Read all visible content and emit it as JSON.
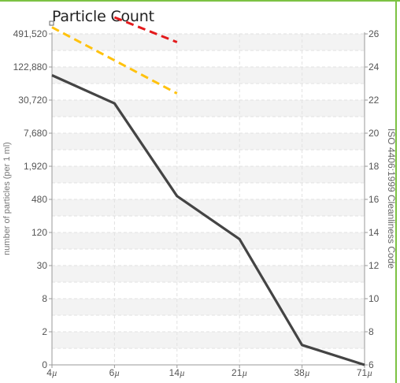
{
  "chart_data": {
    "type": "line",
    "title": "Particle Count",
    "xlabel": "",
    "ylabel": "number of particles (per 1 ml)",
    "y2label": "ISO 4406:1999 Cleanliness Code",
    "categories": [
      "4µ",
      "6µ",
      "14µ",
      "21µ",
      "38µ",
      "71µ"
    ],
    "x_tick_labels": [
      {
        "num": "4",
        "unit": "µ"
      },
      {
        "num": "6",
        "unit": "µ"
      },
      {
        "num": "14",
        "unit": "µ"
      },
      {
        "num": "21",
        "unit": "µ"
      },
      {
        "num": "38",
        "unit": "µ"
      },
      {
        "num": "71",
        "unit": "µ"
      }
    ],
    "y_ticks": [
      "0",
      "2",
      "8",
      "30",
      "120",
      "480",
      "1,920",
      "7,680",
      "30,720",
      "122,880",
      "491,520"
    ],
    "y2_ticks": [
      "6",
      "8",
      "10",
      "12",
      "14",
      "16",
      "18",
      "20",
      "22",
      "24",
      "26"
    ],
    "y2lim": [
      6,
      26
    ],
    "grid": true,
    "series": [
      {
        "name": "",
        "color": "#444444",
        "style": "solid",
        "values": [
          23.5,
          21.8,
          16.2,
          13.6,
          7.2,
          6.0
        ]
      },
      {
        "name": "",
        "color": "#ffc20e",
        "style": "dashed",
        "values": [
          26.4,
          null,
          22.4,
          null,
          null,
          null
        ]
      },
      {
        "name": "",
        "color": "#e31a1c",
        "style": "dashed",
        "values": [
          null,
          27.0,
          25.5,
          null,
          null,
          null
        ]
      }
    ]
  }
}
